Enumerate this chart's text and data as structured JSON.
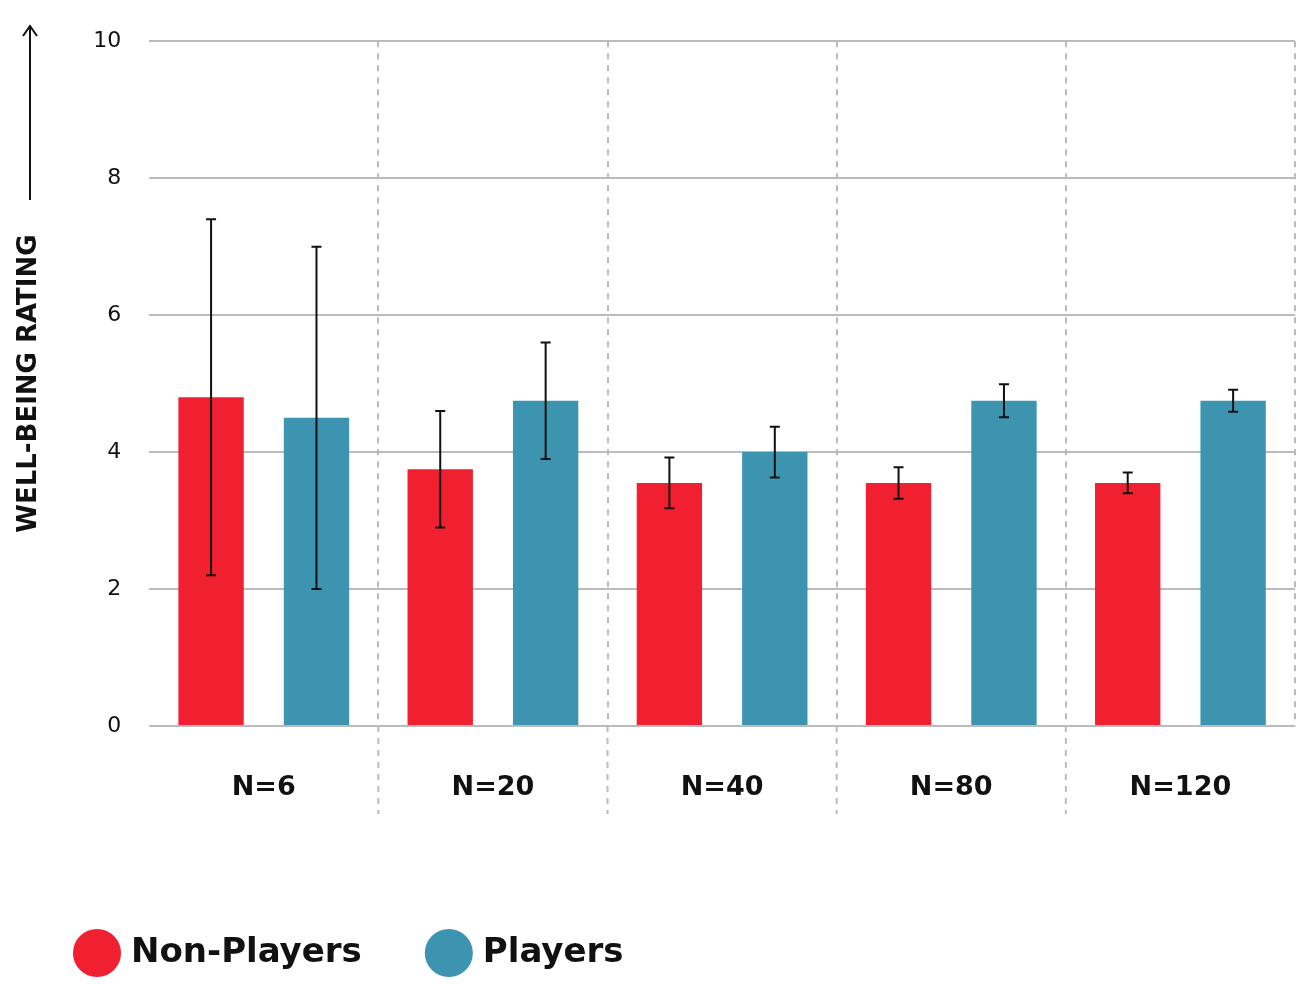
{
  "chart_data": {
    "type": "bar",
    "ylabel": "WELL-BEING RATING",
    "categories": [
      "N=6",
      "N=20",
      "N=40",
      "N=80",
      "N=120"
    ],
    "series": [
      {
        "name": "Non-Players",
        "color": "#f02030",
        "values": [
          4.8,
          3.75,
          3.55,
          3.55,
          3.55
        ],
        "errors": [
          2.6,
          0.85,
          0.37,
          0.23,
          0.15
        ]
      },
      {
        "name": "Players",
        "color": "#3d94b0",
        "values": [
          4.5,
          4.75,
          4.0,
          4.75,
          4.75
        ],
        "errors": [
          2.5,
          0.85,
          0.37,
          0.24,
          0.16
        ]
      }
    ],
    "ylim": [
      0,
      10
    ],
    "yticks": [
      0,
      2,
      4,
      6,
      8,
      10
    ],
    "grid": true,
    "legend": "bottom left"
  }
}
